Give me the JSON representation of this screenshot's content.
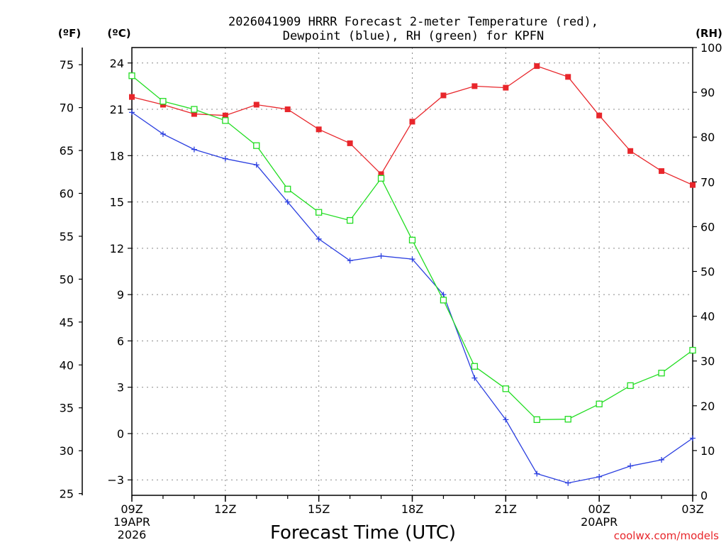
{
  "chart_data": {
    "type": "line",
    "title_line1": "2026041909 HRRR Forecast 2-meter Temperature (red),",
    "title_line2": "Dewpoint (blue), RH (green) for KPFN",
    "xlabel": "Forecast Time (UTC)",
    "credit": "coolwx.com/models",
    "unit_f": "(ºF)",
    "unit_c": "(ºC)",
    "unit_rh": "(RH)",
    "x_hours": [
      0,
      1,
      2,
      3,
      4,
      5,
      6,
      7,
      8,
      9,
      10,
      11,
      12,
      13,
      14,
      15,
      16,
      17,
      18
    ],
    "x_ticks": [
      {
        "hour": 0,
        "label": "09Z",
        "sub1": "19APR",
        "sub2": "2026"
      },
      {
        "hour": 3,
        "label": "12Z",
        "sub1": "",
        "sub2": ""
      },
      {
        "hour": 6,
        "label": "15Z",
        "sub1": "",
        "sub2": ""
      },
      {
        "hour": 9,
        "label": "18Z",
        "sub1": "",
        "sub2": ""
      },
      {
        "hour": 12,
        "label": "21Z",
        "sub1": "",
        "sub2": ""
      },
      {
        "hour": 15,
        "label": "00Z",
        "sub1": "20APR",
        "sub2": ""
      },
      {
        "hour": 18,
        "label": "03Z",
        "sub1": "",
        "sub2": ""
      }
    ],
    "ylim_c": [
      -4,
      25
    ],
    "c_ticks": [
      "-3",
      "0",
      "3",
      "6",
      "9",
      "12",
      "15",
      "18",
      "21",
      "24"
    ],
    "f_ticks": [
      "25",
      "30",
      "35",
      "40",
      "45",
      "50",
      "55",
      "60",
      "65",
      "70",
      "75"
    ],
    "ylim_rh": [
      0,
      100
    ],
    "rh_ticks": [
      "0",
      "10",
      "20",
      "30",
      "40",
      "50",
      "60",
      "70",
      "80",
      "90",
      "100"
    ],
    "series": [
      {
        "name": "2-meter Temperature",
        "axis": "c",
        "color": "#e8262b",
        "marker": "square-filled",
        "values": [
          21.8,
          21.3,
          20.7,
          20.6,
          21.3,
          21.0,
          19.7,
          18.8,
          16.8,
          20.2,
          21.9,
          22.5,
          22.4,
          23.8,
          23.1,
          20.6,
          18.3,
          17.0,
          16.1
        ]
      },
      {
        "name": "Dewpoint",
        "axis": "c",
        "color": "#2b3fe0",
        "marker": "plus",
        "values": [
          20.8,
          19.4,
          18.4,
          17.8,
          17.4,
          15.0,
          12.6,
          11.2,
          11.5,
          11.3,
          9.0,
          3.6,
          0.9,
          -2.6,
          -3.2,
          -2.8,
          -2.1,
          -1.7,
          -0.3
        ]
      },
      {
        "name": "Relative Humidity",
        "axis": "rh",
        "color": "#22dd22",
        "marker": "square-open",
        "values": [
          93.7,
          88.0,
          86.2,
          83.7,
          78.1,
          68.4,
          63.2,
          61.4,
          70.8,
          57.0,
          43.6,
          28.8,
          23.8,
          16.9,
          17.0,
          20.4,
          24.5,
          27.3,
          32.4
        ]
      }
    ]
  }
}
